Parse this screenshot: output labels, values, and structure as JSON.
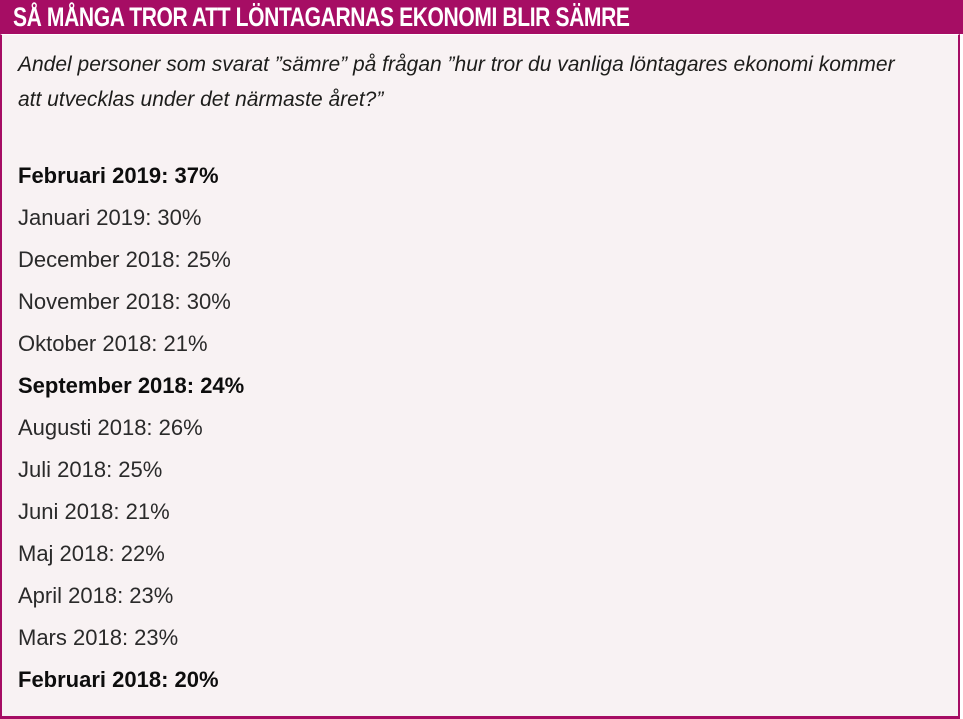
{
  "header": {
    "title": "SÅ MÅNGA TROR ATT LÖNTAGARNAS EKONOMI BLIR SÄMRE",
    "bg_color": "#a60d64",
    "title_color": "#ffffff"
  },
  "intro": {
    "text": "Andel personer som svarat ”sämre” på frågan ”hur tror du vanliga löntagares ekonomi kommer att utvecklas under det närmaste året?”"
  },
  "entries": [
    {
      "text": "Februari 2019: 37%",
      "month": "Februari",
      "year": "2019",
      "percent": "37%",
      "bold": true
    },
    {
      "text": "Januari 2019: 30%",
      "month": "Januari",
      "year": "2019",
      "percent": "30%",
      "bold": false
    },
    {
      "text": "December 2018: 25%",
      "month": "December",
      "year": "2018",
      "percent": "25%",
      "bold": false
    },
    {
      "text": "November 2018: 30%",
      "month": "November",
      "year": "2018",
      "percent": "30%",
      "bold": false
    },
    {
      "text": "Oktober 2018: 21%",
      "month": "Oktober",
      "year": "2018",
      "percent": "21%",
      "bold": false
    },
    {
      "text": "September 2018: 24%",
      "month": "September",
      "year": "2018",
      "percent": "24%",
      "bold": true
    },
    {
      "text": "Augusti 2018: 26%",
      "month": "Augusti",
      "year": "2018",
      "percent": "26%",
      "bold": false
    },
    {
      "text": "Juli 2018: 25%",
      "month": "Juli",
      "year": "2018",
      "percent": "25%",
      "bold": false
    },
    {
      "text": "Juni 2018: 21%",
      "month": "Juni",
      "year": "2018",
      "percent": "21%",
      "bold": false
    },
    {
      "text": "Maj 2018: 22%",
      "month": "Maj",
      "year": "2018",
      "percent": "22%",
      "bold": false
    },
    {
      "text": "April 2018: 23%",
      "month": "April",
      "year": "2018",
      "percent": "23%",
      "bold": false
    },
    {
      "text": "Mars 2018: 23%",
      "month": "Mars",
      "year": "2018",
      "percent": "23%",
      "bold": false
    },
    {
      "text": "Februari 2018: 20%",
      "month": "Februari",
      "year": "2018",
      "percent": "20%",
      "bold": true
    }
  ],
  "colors": {
    "accent": "#a60d64",
    "body_background": "#f8f2f3",
    "text": "#2a2a2a"
  }
}
